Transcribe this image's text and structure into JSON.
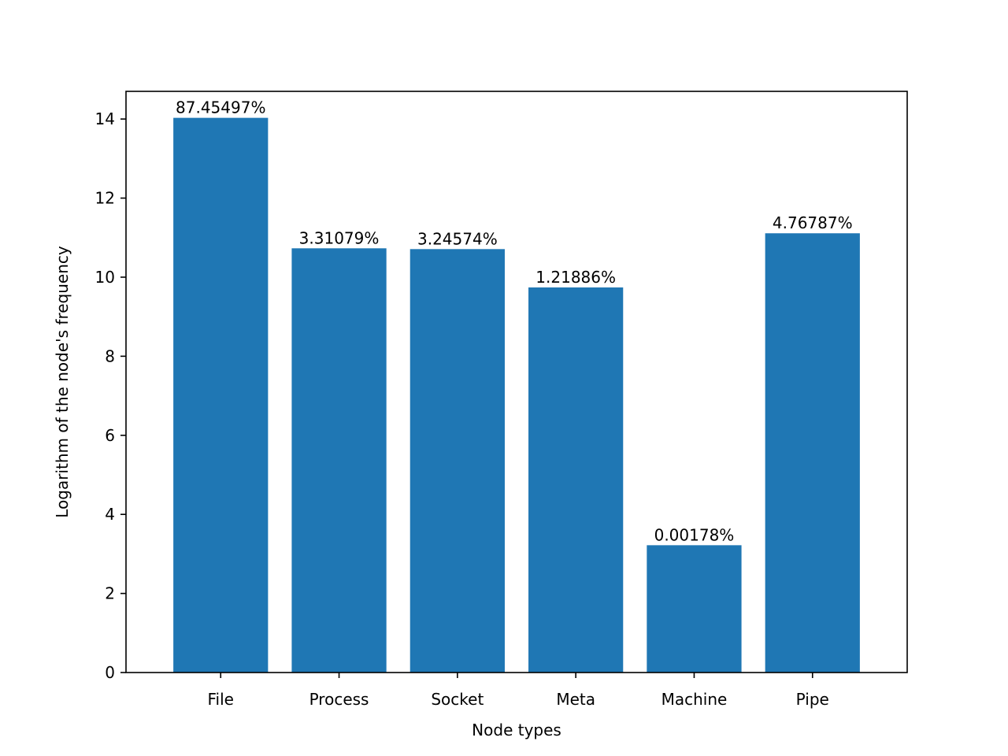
{
  "chart_data": {
    "type": "bar",
    "title": "",
    "xlabel": "Node types",
    "ylabel": "Logarithm of the node's frequency",
    "categories": [
      "File",
      "Process",
      "Socket",
      "Meta",
      "Machine",
      "Pipe"
    ],
    "values": [
      14.03,
      10.73,
      10.71,
      9.74,
      3.22,
      11.11
    ],
    "data_labels": [
      "87.45497%",
      "3.31079%",
      "3.24574%",
      "1.21886%",
      "0.00178%",
      "4.76787%"
    ],
    "ylim": [
      0,
      14.7
    ],
    "yticks": [
      0,
      2,
      4,
      6,
      8,
      10,
      12,
      14
    ],
    "bar_color": "#1f77b4",
    "grid": false,
    "legend": "none"
  }
}
